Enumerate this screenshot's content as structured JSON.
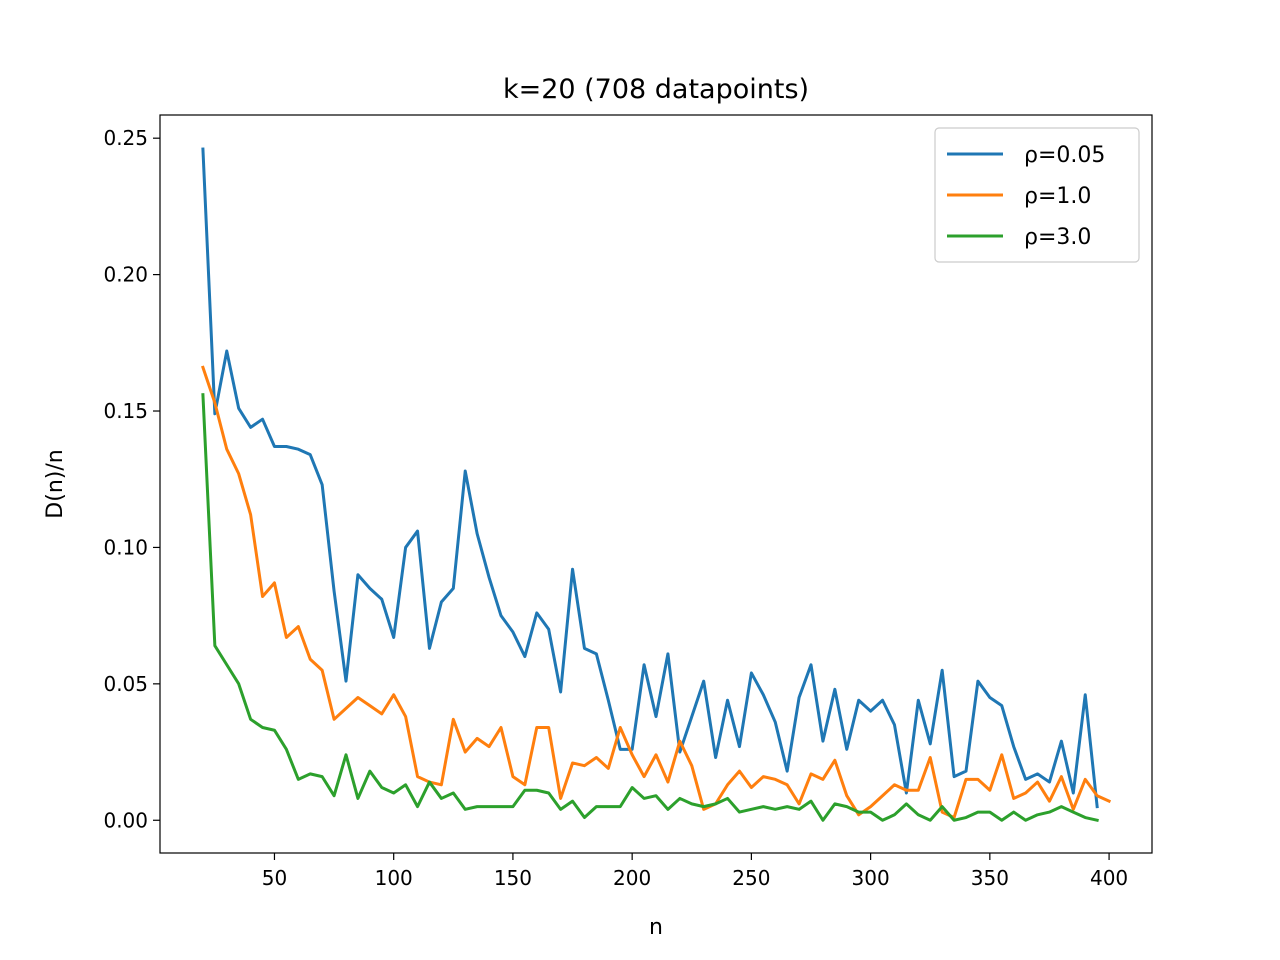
{
  "chart_data": {
    "type": "line",
    "title": "k=20 (708 datapoints)",
    "xlabel": "n",
    "ylabel": "D(n)/n",
    "xlim": [
      2,
      418
    ],
    "ylim": [
      -0.012,
      0.2585
    ],
    "xticks": [
      50,
      100,
      150,
      200,
      250,
      300,
      350,
      400
    ],
    "yticks": [
      0.0,
      0.05,
      0.1,
      0.15,
      0.2,
      0.25
    ],
    "xtick_labels": [
      "50",
      "100",
      "150",
      "200",
      "250",
      "300",
      "350",
      "400"
    ],
    "ytick_labels": [
      "0.00",
      "0.05",
      "0.10",
      "0.15",
      "0.20",
      "0.25"
    ],
    "grid": false,
    "legend_position": "top-right",
    "x": [
      20,
      25,
      30,
      35,
      40,
      45,
      50,
      55,
      60,
      65,
      70,
      75,
      80,
      85,
      90,
      95,
      100,
      105,
      110,
      115,
      120,
      125,
      130,
      135,
      140,
      145,
      150,
      155,
      160,
      165,
      170,
      175,
      180,
      185,
      190,
      195,
      200,
      205,
      210,
      215,
      220,
      225,
      230,
      235,
      240,
      245,
      250,
      255,
      260,
      265,
      270,
      275,
      280,
      285,
      290,
      295,
      300,
      305,
      310,
      315,
      320,
      325,
      330,
      335,
      340,
      345,
      350,
      355,
      360,
      365,
      370,
      375,
      380,
      385,
      390,
      395,
      400
    ],
    "series": [
      {
        "name": "ρ=0.05",
        "color": "#1f77b4",
        "values": [
          0.246,
          0.149,
          0.172,
          0.151,
          0.144,
          0.147,
          0.137,
          0.137,
          0.136,
          0.134,
          0.123,
          0.084,
          0.051,
          0.09,
          0.085,
          0.081,
          0.067,
          0.1,
          0.106,
          0.063,
          0.08,
          0.085,
          0.128,
          0.105,
          0.089,
          0.075,
          0.069,
          0.06,
          0.076,
          0.07,
          0.047,
          0.092,
          0.063,
          0.061,
          0.044,
          0.026,
          0.026,
          0.057,
          0.038,
          0.061,
          0.025,
          0.038,
          0.051,
          0.023,
          0.044,
          0.027,
          0.054,
          0.046,
          0.036,
          0.018,
          0.045,
          0.057,
          0.029,
          0.048,
          0.026,
          0.044,
          0.04,
          0.044,
          0.035,
          0.01,
          0.044,
          0.028,
          0.055,
          0.016,
          0.018,
          0.051,
          0.045,
          0.042,
          0.027,
          0.015,
          0.017,
          0.014,
          0.029,
          0.01,
          0.046,
          0.005,
          null
        ]
      },
      {
        "name": "ρ=1.0",
        "color": "#ff7f0e",
        "values": [
          0.166,
          0.153,
          0.136,
          0.127,
          0.112,
          0.082,
          0.087,
          0.067,
          0.071,
          0.059,
          0.055,
          0.037,
          0.041,
          0.045,
          0.042,
          0.039,
          0.046,
          0.038,
          0.016,
          0.014,
          0.013,
          0.037,
          0.025,
          0.03,
          0.027,
          0.034,
          0.016,
          0.013,
          0.034,
          0.034,
          0.008,
          0.021,
          0.02,
          0.023,
          0.019,
          0.034,
          0.024,
          0.016,
          0.024,
          0.014,
          0.029,
          0.02,
          0.004,
          0.006,
          0.013,
          0.018,
          0.012,
          0.016,
          0.015,
          0.013,
          0.006,
          0.017,
          0.015,
          0.022,
          0.009,
          0.002,
          0.005,
          0.009,
          0.013,
          0.011,
          0.011,
          0.023,
          0.003,
          0.001,
          0.015,
          0.015,
          0.011,
          0.024,
          0.008,
          0.01,
          0.014,
          0.007,
          0.016,
          0.004,
          0.015,
          0.009,
          0.007
        ]
      },
      {
        "name": "ρ=3.0",
        "color": "#2ca02c",
        "values": [
          0.156,
          0.064,
          0.057,
          0.05,
          0.037,
          0.034,
          0.033,
          0.026,
          0.015,
          0.017,
          0.016,
          0.009,
          0.024,
          0.008,
          0.018,
          0.012,
          0.01,
          0.013,
          0.005,
          0.014,
          0.008,
          0.01,
          0.004,
          0.005,
          0.005,
          0.005,
          0.005,
          0.011,
          0.011,
          0.01,
          0.004,
          0.007,
          0.001,
          0.005,
          0.005,
          0.005,
          0.012,
          0.008,
          0.009,
          0.004,
          0.008,
          0.006,
          0.005,
          0.006,
          0.008,
          0.003,
          0.004,
          0.005,
          0.004,
          0.005,
          0.004,
          0.007,
          0.0,
          0.006,
          0.005,
          0.003,
          0.003,
          0.0,
          0.002,
          0.006,
          0.002,
          0.0,
          0.005,
          0.0,
          0.001,
          0.003,
          0.003,
          0.0,
          0.003,
          0.0,
          0.002,
          0.003,
          0.005,
          0.003,
          0.001,
          0.0,
          null
        ]
      }
    ]
  }
}
